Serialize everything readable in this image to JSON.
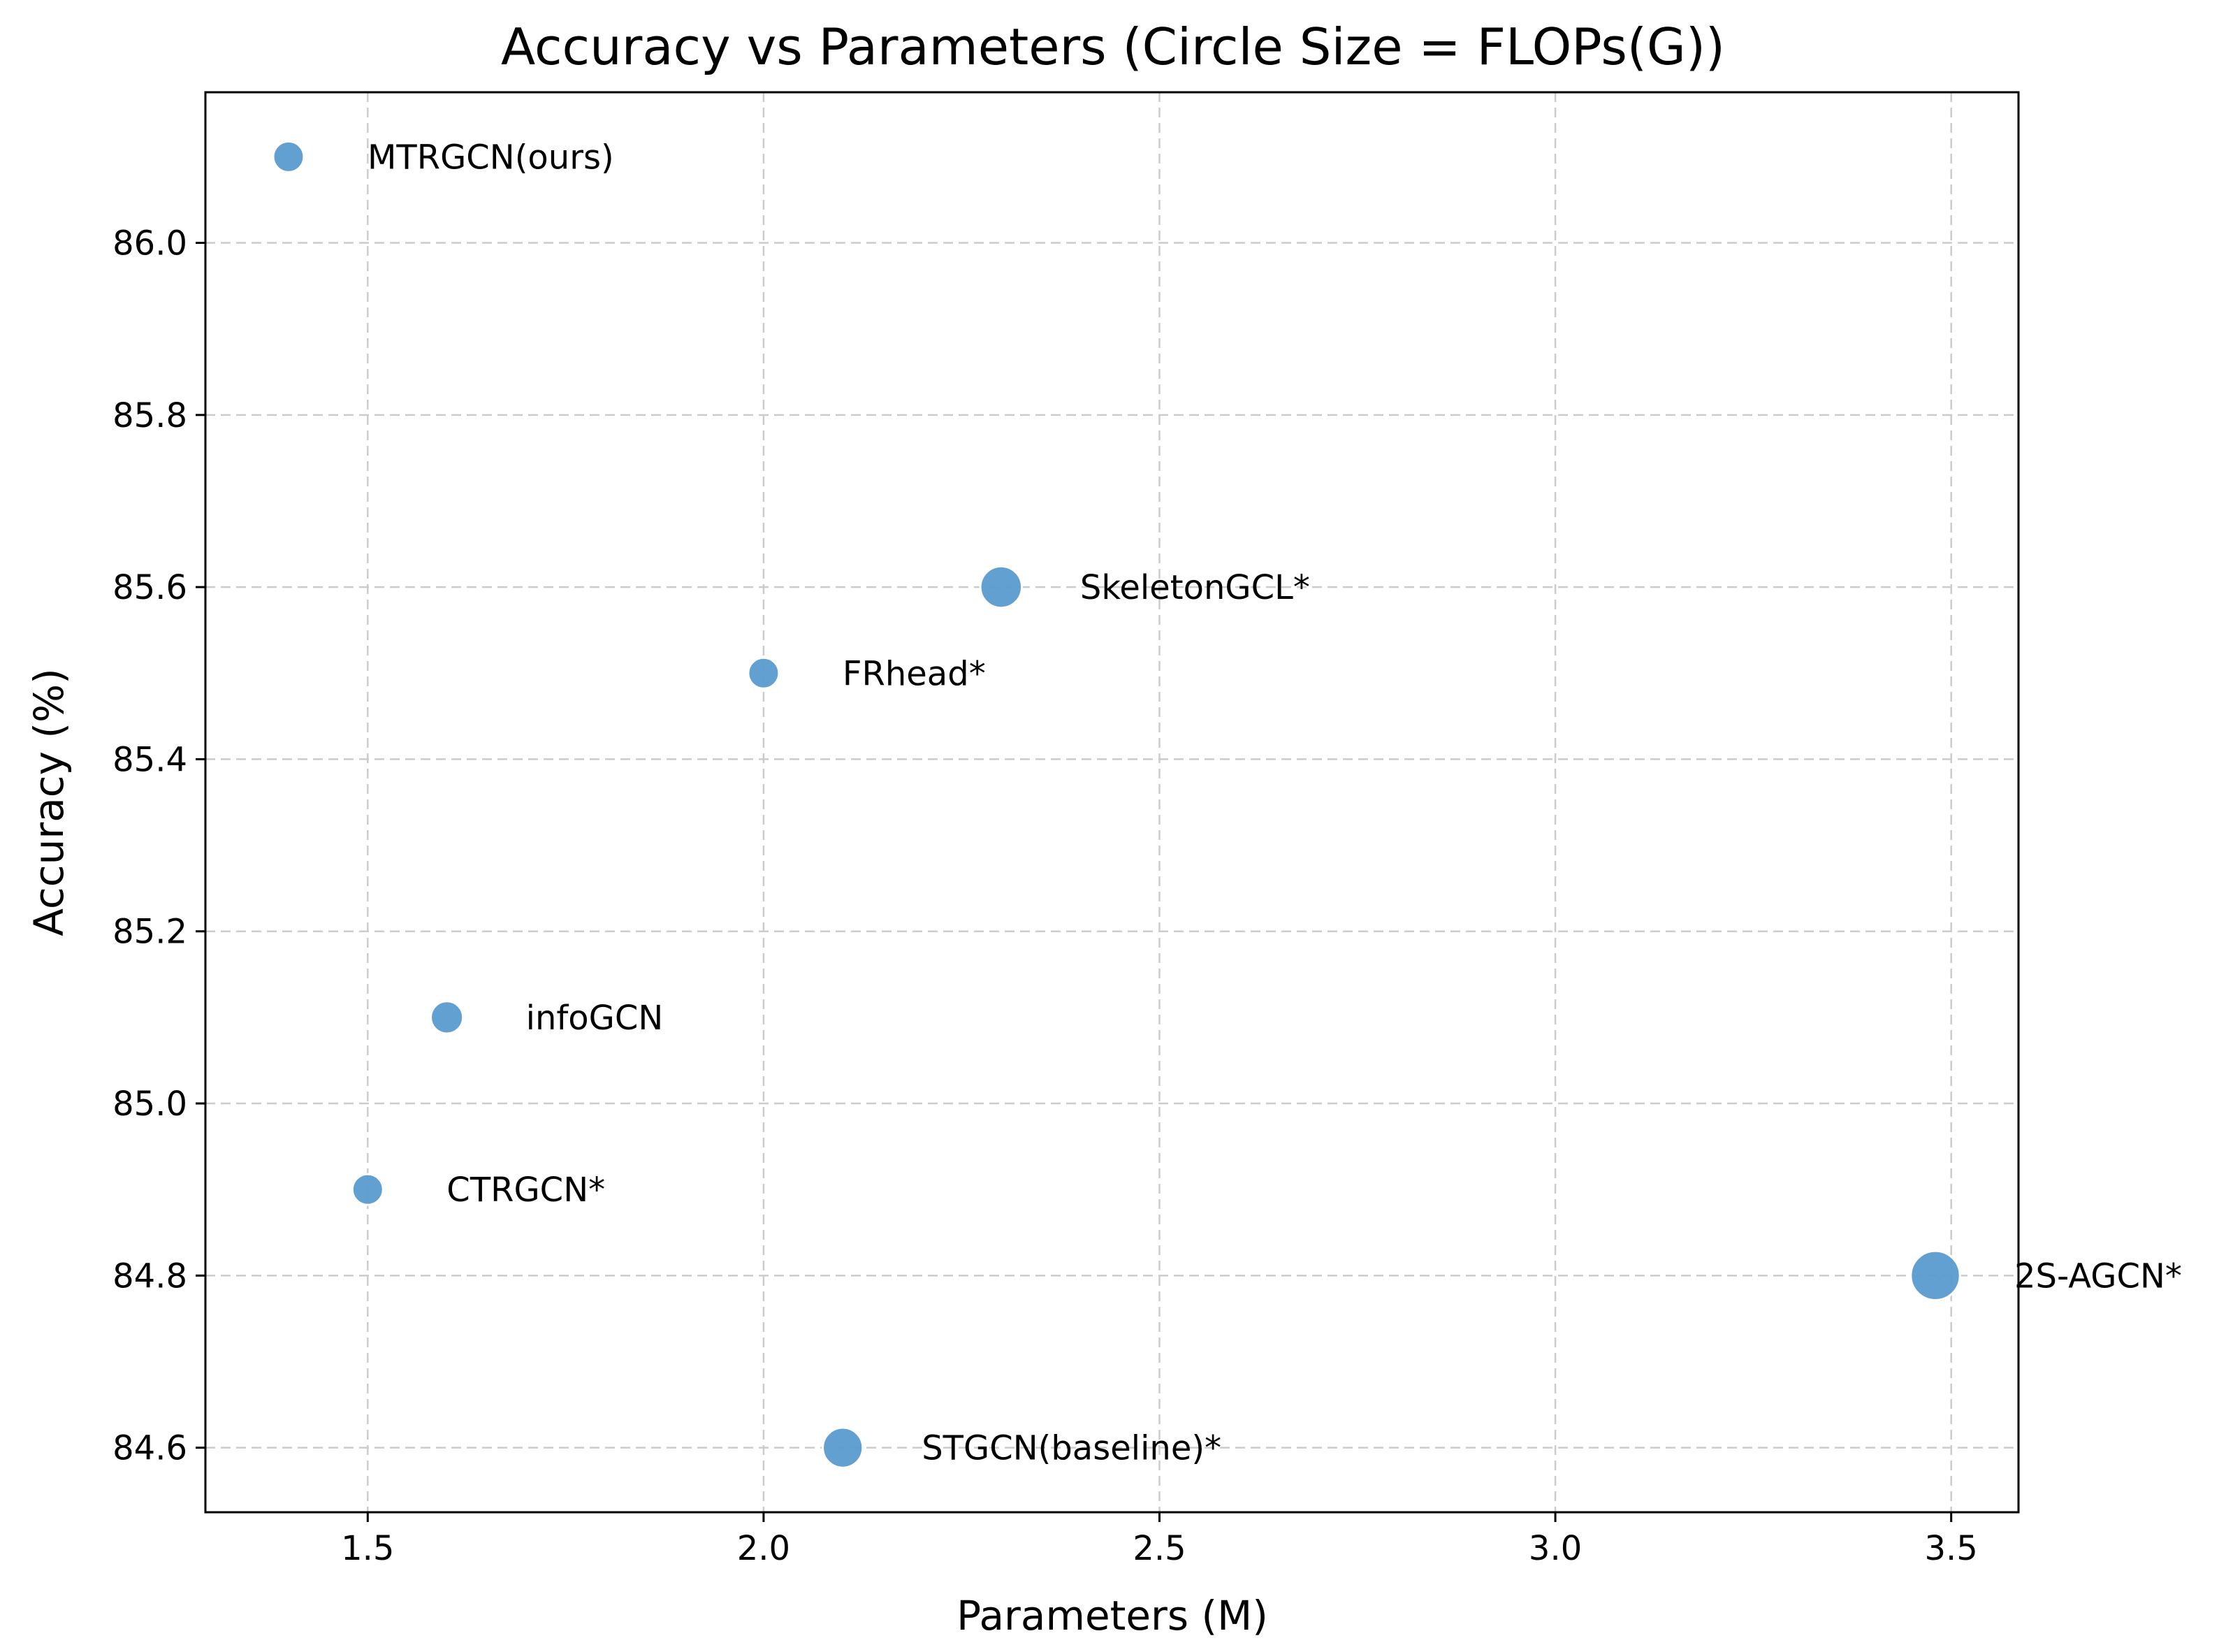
{
  "chart_data": {
    "type": "scatter",
    "title": "Accuracy vs Parameters (Circle Size = FLOPs(G))",
    "xlabel": "Parameters (M)",
    "ylabel": "Accuracy (%)",
    "xlim": [
      1.295,
      3.585
    ],
    "ylim": [
      84.525,
      86.175
    ],
    "xticks": [
      1.5,
      2.0,
      2.5,
      3.0,
      3.5
    ],
    "xtick_labels": [
      "1.5",
      "2.0",
      "2.5",
      "3.0",
      "3.5"
    ],
    "yticks": [
      84.6,
      84.8,
      85.0,
      85.2,
      85.4,
      85.6,
      85.8,
      86.0
    ],
    "ytick_labels": [
      "84.6",
      "84.8",
      "85.0",
      "85.2",
      "85.4",
      "85.6",
      "85.8",
      "86.0"
    ],
    "grid": true,
    "marker_color": "#5b9bd0",
    "points": [
      {
        "label": "MTRGCN(ours)",
        "x": 1.4,
        "y": 86.1,
        "size_rel": 1.0
      },
      {
        "label": "SkeletonGCL*",
        "x": 2.3,
        "y": 85.6,
        "size_rel": 1.35
      },
      {
        "label": "FRhead*",
        "x": 2.0,
        "y": 85.5,
        "size_rel": 1.0
      },
      {
        "label": "infoGCN",
        "x": 1.6,
        "y": 85.1,
        "size_rel": 1.05
      },
      {
        "label": "CTRGCN*",
        "x": 1.5,
        "y": 84.9,
        "size_rel": 1.0
      },
      {
        "label": "2S-AGCN*",
        "x": 3.48,
        "y": 84.8,
        "size_rel": 1.6
      },
      {
        "label": "STGCN(baseline)*",
        "x": 2.1,
        "y": 84.6,
        "size_rel": 1.3
      }
    ]
  }
}
